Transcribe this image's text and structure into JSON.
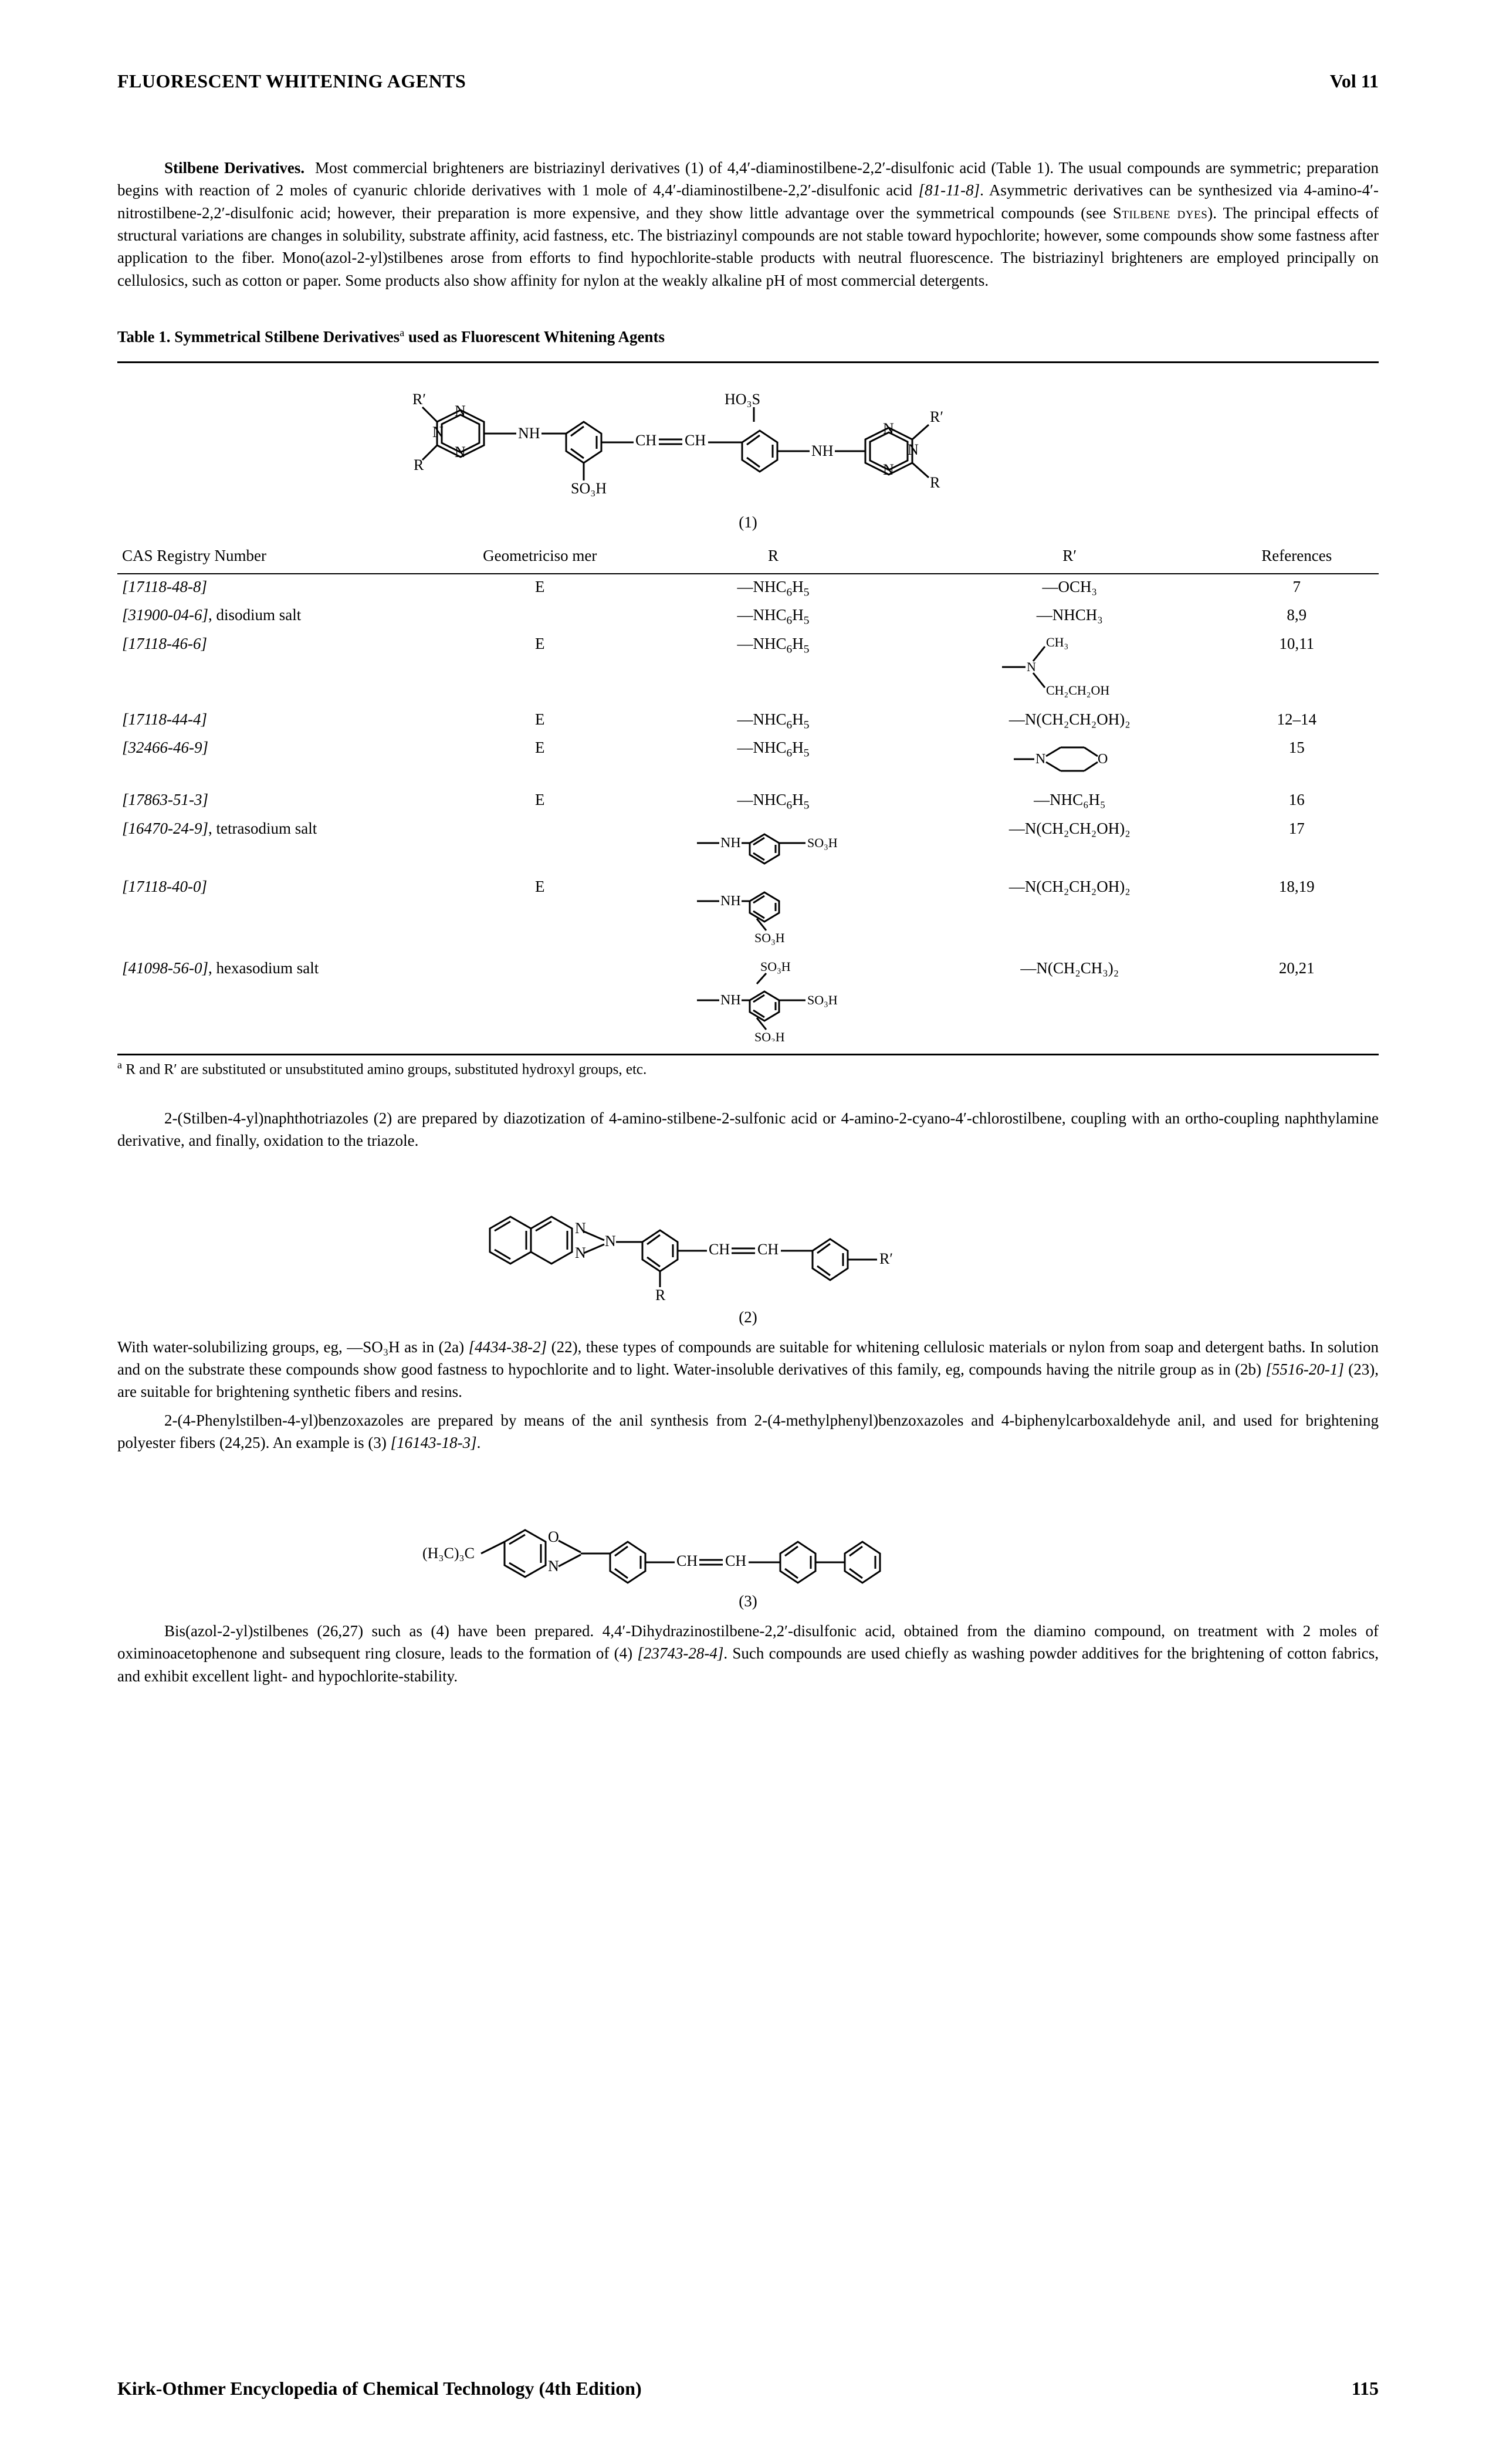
{
  "header": {
    "title": "FLUORESCENT WHITENING AGENTS",
    "volume": "Vol 11"
  },
  "intro": {
    "run_in": "Stilbene Derivatives.",
    "text": "Most commercial brighteners are bistriazinyl derivatives (1) of 4,4′-diaminostilbene-2,2′-disulfonic acid (Table 1). The usual compounds are symmetric; preparation begins with reaction of 2 moles of cyanuric chloride derivatives with 1 mole of 4,4′-diaminostilbene-2,2′-disulfonic acid [81-11-8]. Asymmetric derivatives can be synthesized via 4-amino-4′-nitrostilbene-2,2′-disulfonic acid; however, their preparation is more expensive, and they show little advantage over the symmetrical compounds (see STILBENE DYES). The principal effects of structural variations are changes in solubility, substrate affinity, acid fastness, etc. The bistriazinyl compounds are not stable toward hypochlorite; however, some compounds show some fastness after application to the fiber. Mono(azol-2-yl)stilbenes arose from efforts to find hypochlorite-stable products with neutral fluorescence. The bistriazinyl brighteners are employed principally on cellulosics, such as cotton or paper. Some products also show affinity for nylon at the weakly alkaline pH of most commercial detergents."
  },
  "table1": {
    "title_prefix": "Table 1. Symmetrical Stilbene Derivatives",
    "title_suffix": " used as Fluorescent Whitening Agents",
    "structure_label": "(1)",
    "columns": [
      "CAS Registry Number",
      "Geometriciso mer",
      "R",
      "R′",
      "References"
    ],
    "rows": [
      {
        "cas": "[17118-48-8]",
        "salt": "",
        "geo": "E",
        "R_type": "nhc6h5",
        "Rp_type": "text",
        "Rp_text": "—OCH₃",
        "refs": "7"
      },
      {
        "cas": "[31900-04-6]",
        "salt": ", disodium salt",
        "geo": "",
        "R_type": "nhc6h5",
        "Rp_type": "text",
        "Rp_text": "—NHCH₃",
        "refs": "8,9"
      },
      {
        "cas": "[17118-46-6]",
        "salt": "",
        "geo": "E",
        "R_type": "nhc6h5",
        "Rp_type": "n_ch3_ch2ch2oh",
        "refs": "10,11"
      },
      {
        "cas": "[17118-44-4]",
        "salt": "",
        "geo": "E",
        "R_type": "nhc6h5",
        "Rp_type": "text",
        "Rp_text": "—N(CH₂CH₂OH)₂",
        "refs": "12–14"
      },
      {
        "cas": "[32466-46-9]",
        "salt": "",
        "geo": "E",
        "R_type": "nhc6h5",
        "Rp_type": "morpholino",
        "refs": "15"
      },
      {
        "cas": "[17863-51-3]",
        "salt": "",
        "geo": "E",
        "R_type": "nhc6h5",
        "Rp_type": "text",
        "Rp_text": "—NHC₆H₅",
        "refs": "16"
      },
      {
        "cas": "[16470-24-9]",
        "salt": ", tetrasodium salt",
        "geo": "",
        "R_type": "nh_phenyl_so3h_para",
        "Rp_type": "text",
        "Rp_text": "—N(CH₂CH₂OH)₂",
        "refs": "17"
      },
      {
        "cas": "[17118-40-0]",
        "salt": "",
        "geo": "E",
        "R_type": "nh_phenyl_so3h_meta",
        "Rp_type": "text",
        "Rp_text": "—N(CH₂CH₂OH)₂",
        "refs": "18,19"
      },
      {
        "cas": "[41098-56-0]",
        "salt": ", hexasodium salt",
        "geo": "",
        "R_type": "nh_phenyl_diso3h",
        "Rp_type": "text",
        "Rp_text": "—N(CH₂CH₃)₂",
        "refs": "20,21"
      }
    ],
    "footnote": "R and R′ are substituted or unsubstituted amino groups, substituted hydroxyl groups, etc."
  },
  "para2": "2-(Stilben-4-yl)naphthotriazoles (2) are prepared by diazotization of 4-amino-stilbene-2-sulfonic acid or 4-amino-2-cyano-4′-chlorostilbene, coupling with an ortho-coupling naphthylamine derivative, and finally, oxidation to the triazole.",
  "fig2_label": "(2)",
  "para3": "With water-solubilizing groups, eg, —SO₃H as in (2a) [4434-38-2] (22), these types of compounds are suitable for whitening cellulosic materials or nylon from soap and detergent baths. In solution and on the substrate these compounds show good fastness to hypochlorite and to light. Water-insoluble derivatives of this family, eg, compounds having the nitrile group as in (2b) [5516-20-1] (23), are suitable for brightening synthetic fibers and resins.",
  "para4": "2-(4-Phenylstilben-4-yl)benzoxazoles are prepared by means of the anil synthesis from 2-(4-methylphenyl)benzoxazoles and 4-biphenylcarboxaldehyde anil, and used for brightening polyester fibers (24,25). An example is (3) [16143-18-3].",
  "fig3_label": "(3)",
  "para5": "Bis(azol-2-yl)stilbenes (26,27) such as (4) have been prepared. 4,4′-Dihydrazinostilbene-2,2′-disulfonic acid, obtained from the diamino compound, on treatment with 2 moles of oximinoacetophenone and subsequent ring closure, leads to the formation of (4) [23743-28-4]. Such compounds are used chiefly as washing powder additives for the brightening of cotton fabrics, and exhibit excellent light- and hypochlorite-stability.",
  "footer": {
    "source": "Kirk-Othmer Encyclopedia of Chemical Technology (4th Edition)",
    "page": "115"
  },
  "style": {
    "svg_stroke": "#000000",
    "svg_stroke_width": 3,
    "font_color": "#000000",
    "background": "#ffffff"
  }
}
